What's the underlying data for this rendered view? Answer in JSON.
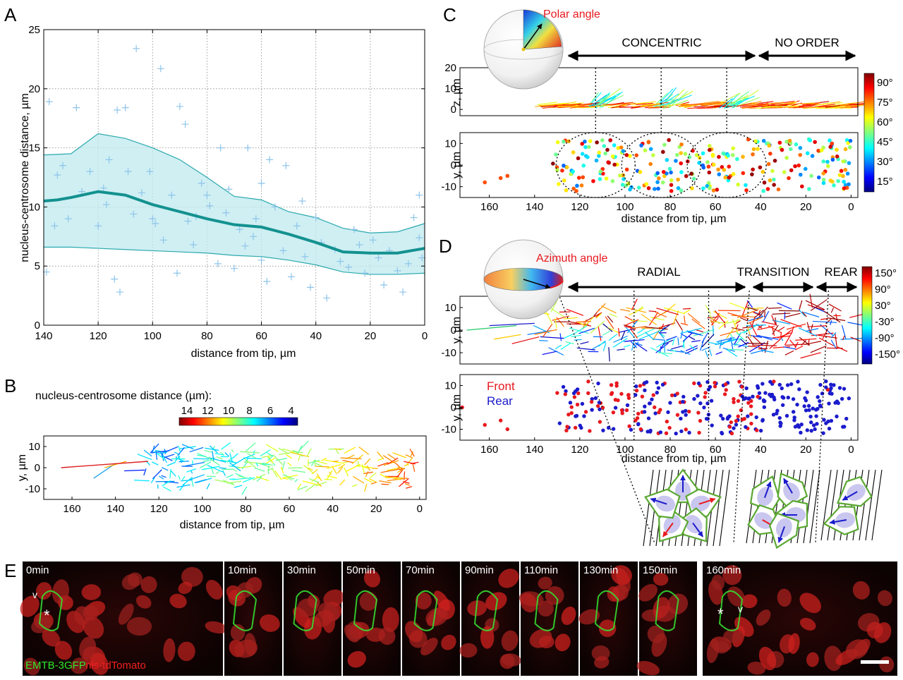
{
  "panels": {
    "A": {
      "label": "A",
      "xlabel": "distance from tip, µm",
      "ylabel": "nucleus-centrosome distance, µm"
    },
    "B": {
      "label": "B",
      "colorbar_title": "nucleus-centrosome distance (µm):",
      "colorbar_ticks": [
        "14",
        "12",
        "10",
        "8",
        "6",
        "4"
      ],
      "xlabel": "distance from tip, µm",
      "ylabel": "y, µm"
    },
    "C": {
      "label": "C",
      "sphere_label": "Polar angle",
      "segments": [
        "CONCENTRIC",
        "NO ORDER"
      ],
      "ylabel_top": "z, µm",
      "ylabel_bottom": "y, µm",
      "xlabel": "distance from tip, µm",
      "colorbar_ticks": [
        "90°",
        "75°",
        "60°",
        "45°",
        "30°",
        "15°"
      ]
    },
    "D": {
      "label": "D",
      "sphere_label": "Azimuth angle",
      "segments": [
        "RADIAL",
        "TRANSITION",
        "REAR"
      ],
      "ylabel_top": "y, µm",
      "ylabel_bottom": "y, µm",
      "xlabel": "distance from tip, µm",
      "legend_front": "Front",
      "legend_rear": "Rear",
      "colorbar_ticks": [
        "150°",
        "90°",
        "30°",
        "-30°",
        "-90°",
        "-150°"
      ]
    },
    "E": {
      "label": "E",
      "frames": [
        "0min",
        "10min",
        "30min",
        "50min",
        "70min",
        "90min",
        "110min",
        "130min",
        "150min",
        "160min"
      ],
      "channel_green": "EMTB-3GFP",
      "channel_red": "nls-tdTomato",
      "marker_star": "*",
      "marker_v": "v"
    }
  },
  "chart_data": [
    {
      "panel": "A",
      "type": "line",
      "title": "",
      "xlabel": "distance from tip, µm",
      "ylabel": "nucleus-centrosome distance, µm",
      "x_reversed": true,
      "xlim": [
        0,
        140
      ],
      "ylim": [
        0,
        25
      ],
      "xticks": [
        140,
        120,
        100,
        80,
        60,
        40,
        20,
        0
      ],
      "yticks": [
        0,
        5,
        10,
        15,
        20,
        25
      ],
      "grid": true,
      "series": [
        {
          "x": [
            140,
            135,
            130,
            120,
            110,
            100,
            90,
            80,
            70,
            60,
            50,
            40,
            30,
            20,
            10,
            0
          ],
          "values": [
            10.5,
            10.6,
            10.8,
            11.3,
            11.0,
            10.2,
            9.6,
            9.0,
            8.5,
            8.3,
            7.7,
            7.0,
            6.2,
            6.1,
            6.1,
            6.5
          ]
        },
        {
          "x": [
            140,
            130,
            120,
            110,
            100,
            90,
            80,
            70,
            60,
            50,
            40,
            30,
            20,
            10,
            0
          ],
          "values": [
            14.4,
            14.5,
            16.2,
            15.8,
            15.0,
            14.0,
            12.5,
            10.9,
            10.6,
            9.6,
            9.1,
            8.2,
            7.8,
            7.9,
            8.6
          ]
        },
        {
          "x": [
            140,
            130,
            120,
            110,
            100,
            90,
            80,
            70,
            60,
            50,
            40,
            30,
            20,
            10,
            0
          ],
          "values": [
            6.6,
            6.6,
            6.5,
            6.4,
            6.3,
            6.2,
            6.1,
            5.9,
            5.8,
            5.5,
            5.1,
            4.5,
            4.3,
            4.3,
            4.4
          ]
        }
      ],
      "scatter": [
        [
          138,
          18.9
        ],
        [
          128,
          18.4
        ],
        [
          113,
          18.2
        ],
        [
          110,
          18.4
        ],
        [
          106,
          23.4
        ],
        [
          97,
          21.7
        ],
        [
          90,
          18.5
        ],
        [
          88,
          17.0
        ],
        [
          75,
          15.0
        ],
        [
          65,
          15.0
        ],
        [
          57,
          14.0
        ],
        [
          51,
          13.5
        ],
        [
          2,
          11.0
        ],
        [
          139,
          4.5
        ],
        [
          135,
          12.7
        ],
        [
          133,
          13.5
        ],
        [
          131,
          9.0
        ],
        [
          126,
          11.3
        ],
        [
          123,
          13.0
        ],
        [
          120,
          8.4
        ],
        [
          117,
          10.2
        ],
        [
          116,
          14.0
        ],
        [
          114,
          3.9
        ],
        [
          112,
          2.8
        ],
        [
          109,
          13.0
        ],
        [
          107,
          9.4
        ],
        [
          104,
          11.2
        ],
        [
          101,
          13.0
        ],
        [
          99,
          8.6
        ],
        [
          96,
          7.2
        ],
        [
          93,
          11.0
        ],
        [
          91,
          4.4
        ],
        [
          87,
          8.8
        ],
        [
          85,
          6.8
        ],
        [
          82,
          12.0
        ],
        [
          79,
          10.1
        ],
        [
          76,
          5.2
        ],
        [
          73,
          9.5
        ],
        [
          70,
          4.8
        ],
        [
          68,
          8.1
        ],
        [
          66,
          6.7
        ],
        [
          63,
          7.5
        ],
        [
          60,
          5.5
        ],
        [
          58,
          3.7
        ],
        [
          55,
          10.0
        ],
        [
          52,
          6.3
        ],
        [
          49,
          4.1
        ],
        [
          47,
          8.4
        ],
        [
          44,
          5.8
        ],
        [
          42,
          3.2
        ],
        [
          40,
          9.1
        ],
        [
          38,
          7.0
        ],
        [
          36,
          2.3
        ],
        [
          33,
          6.4
        ],
        [
          31,
          5.4
        ],
        [
          28,
          4.9
        ],
        [
          26,
          8.1
        ],
        [
          24,
          6.8
        ],
        [
          22,
          4.4
        ],
        [
          19,
          7.2
        ],
        [
          17,
          5.7
        ],
        [
          15,
          3.4
        ],
        [
          13,
          6.3
        ],
        [
          10,
          4.6
        ],
        [
          8,
          2.8
        ],
        [
          6,
          5.2
        ],
        [
          4,
          9.1
        ],
        [
          2,
          7.4
        ],
        [
          1,
          5.7
        ],
        [
          60,
          12.0
        ],
        [
          80,
          11.0
        ],
        [
          100,
          9.0
        ],
        [
          118,
          11.6
        ],
        [
          136,
          8.4
        ],
        [
          84,
          9.2
        ],
        [
          72,
          11.5
        ],
        [
          62,
          9.0
        ],
        [
          45,
          10.5
        ]
      ]
    },
    {
      "panel": "B",
      "type": "scatter",
      "title": "",
      "xlabel": "distance from tip, µm",
      "ylabel": "y, µm",
      "x_reversed": true,
      "xlim": [
        -3,
        173
      ],
      "ylim": [
        -15,
        15
      ],
      "xticks": [
        160,
        140,
        120,
        100,
        80,
        60,
        40,
        20,
        0
      ],
      "yticks": [
        10,
        0,
        -10
      ],
      "colorbar": {
        "ticks": [
          14,
          12,
          10,
          8,
          6,
          4
        ],
        "colormap": "jet"
      }
    },
    {
      "panel": "C",
      "type": "scatter",
      "title": "",
      "xlabel": "distance from tip, µm",
      "x_reversed": true,
      "xlim": [
        -3,
        173
      ],
      "xticks": [
        160,
        140,
        120,
        100,
        80,
        60,
        40,
        20,
        0
      ],
      "top": {
        "ylabel": "z, µm",
        "ylim": [
          -3,
          20
        ],
        "yticks": [
          20,
          10,
          0
        ]
      },
      "bottom": {
        "ylabel": "y, µm",
        "ylim": [
          -15,
          15
        ],
        "yticks": [
          10,
          0,
          -10
        ]
      },
      "colorbar": {
        "ticks": [
          "90°",
          "75°",
          "60°",
          "45°",
          "30°",
          "15°"
        ],
        "colormap": "jet"
      },
      "regions": [
        {
          "label": "CONCENTRIC",
          "x": [
            130,
            40
          ]
        },
        {
          "label": "NO ORDER",
          "x": [
            40,
            0
          ]
        }
      ],
      "circles_x": [
        113,
        84,
        55
      ]
    },
    {
      "panel": "D",
      "type": "scatter",
      "title": "",
      "xlabel": "distance from tip, µm",
      "x_reversed": true,
      "xlim": [
        -3,
        173
      ],
      "xticks": [
        160,
        140,
        120,
        100,
        80,
        60,
        40,
        20,
        0
      ],
      "top": {
        "ylabel": "y, µm",
        "ylim": [
          -15,
          15
        ],
        "yticks": [
          10,
          0,
          -10
        ]
      },
      "bottom": {
        "ylabel": "y, µm",
        "ylim": [
          -15,
          15
        ],
        "yticks": [
          10,
          0,
          -10
        ]
      },
      "colorbar": {
        "ticks": [
          "150°",
          "90°",
          "30°",
          "-30°",
          "-90°",
          "-150°"
        ],
        "colormap": "jet"
      },
      "regions": [
        {
          "label": "RADIAL",
          "x": [
            130,
            45
          ]
        },
        {
          "label": "TRANSITION",
          "x": [
            45,
            10
          ]
        },
        {
          "label": "REAR",
          "x": [
            10,
            -3
          ]
        }
      ],
      "dividers_x": [
        130,
        96,
        63,
        45,
        10
      ],
      "legend": [
        {
          "name": "Front",
          "color": "#e8191f"
        },
        {
          "name": "Rear",
          "color": "#1b1bcc"
        }
      ]
    }
  ]
}
